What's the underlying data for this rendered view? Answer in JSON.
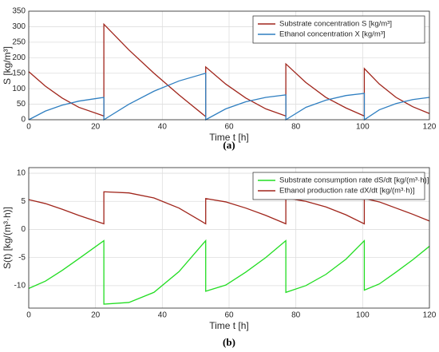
{
  "chart_data": [
    {
      "type": "line",
      "caption": "(a)",
      "x_label": "Time t [h]",
      "y_label": "S [kg/m³]",
      "x": [
        0,
        5,
        10,
        15,
        22.5,
        22.5,
        30,
        37.5,
        45,
        53,
        53,
        59,
        65,
        71,
        77,
        77,
        83,
        89,
        95,
        100.5,
        100.5,
        105,
        110,
        115,
        120
      ],
      "series": [
        {
          "name": "Substrate concentration S [kg/m³]",
          "color": "#a0251b",
          "values": [
            155,
            108,
            70,
            40,
            12,
            308,
            225,
            150,
            80,
            10,
            170,
            115,
            70,
            35,
            12,
            180,
            120,
            72,
            38,
            12,
            165,
            115,
            72,
            42,
            20
          ]
        },
        {
          "name": "Ethanol concentration X [kg/m³]",
          "color": "#2f7fc1",
          "values": [
            0,
            28,
            47,
            60,
            72,
            0,
            50,
            92,
            125,
            150,
            0,
            35,
            58,
            72,
            80,
            0,
            40,
            63,
            78,
            85,
            0,
            32,
            52,
            65,
            72
          ]
        }
      ],
      "xlim": [
        0,
        120
      ],
      "xticks": [
        0,
        20,
        40,
        60,
        80,
        100,
        120
      ],
      "ylim": [
        0,
        350
      ],
      "yticks": [
        0,
        50,
        100,
        150,
        200,
        250,
        300,
        350
      ],
      "grid": true,
      "legend": "upper right"
    },
    {
      "type": "line",
      "caption": "(b)",
      "x_label": "Time t [h]",
      "y_label": "S(t) [kg/(m³·h)]",
      "x": [
        0,
        5,
        10,
        15,
        22.5,
        22.5,
        30,
        37.5,
        45,
        53,
        53,
        59,
        65,
        71,
        77,
        77,
        83,
        89,
        95,
        100.5,
        100.5,
        105,
        110,
        115,
        120
      ],
      "series": [
        {
          "name": "Substrate consumption rate dS/dt [kg/(m³·h)]",
          "color": "#22dd22",
          "values": [
            -10.5,
            -9.2,
            -7.3,
            -5.2,
            -2.0,
            -13.3,
            -13.0,
            -11.2,
            -7.5,
            -2.0,
            -11,
            -9.9,
            -7.6,
            -5.0,
            -2.0,
            -11.2,
            -10.0,
            -8.0,
            -5.3,
            -2.0,
            -10.8,
            -9.7,
            -7.6,
            -5.4,
            -3.0
          ]
        },
        {
          "name": "Ethanol production rate dX/dt [kg/(m³·h)]",
          "color": "#a0251b",
          "values": [
            5.3,
            4.6,
            3.6,
            2.5,
            1.0,
            6.7,
            6.5,
            5.6,
            3.8,
            1.0,
            5.5,
            4.9,
            3.8,
            2.5,
            1.0,
            5.6,
            5.0,
            4.0,
            2.6,
            1.0,
            5.5,
            4.9,
            3.8,
            2.7,
            1.5
          ]
        }
      ],
      "xlim": [
        0,
        120
      ],
      "xticks": [
        0,
        20,
        40,
        60,
        80,
        100,
        120
      ],
      "ylim": [
        -14,
        11
      ],
      "yticks": [
        -10,
        -5,
        0,
        5,
        10
      ],
      "grid": true,
      "legend": "upper right"
    }
  ]
}
